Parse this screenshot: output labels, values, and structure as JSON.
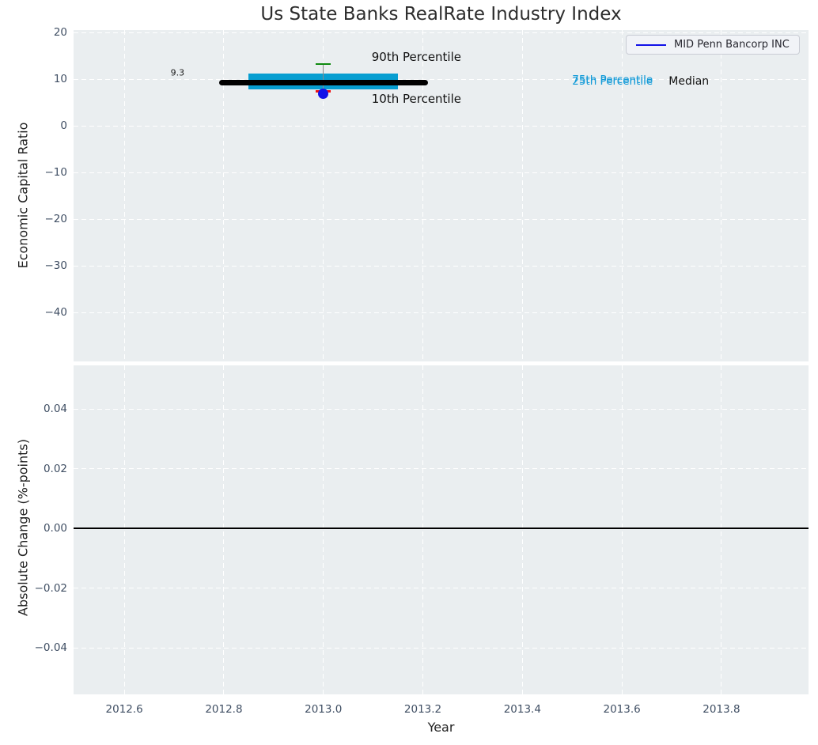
{
  "chart_data": {
    "type": "boxplot",
    "title": "Us State Banks RealRate Industry Index",
    "xlabel": "Year",
    "background": "#eaeef0",
    "grid": {
      "style": "dashed",
      "color": "#ffffff"
    },
    "xlim": [
      2012.498,
      2013.975
    ],
    "x_ticks": [
      {
        "value": 2012.6,
        "label": "2012.6"
      },
      {
        "value": 2012.8,
        "label": "2012.8"
      },
      {
        "value": 2013.0,
        "label": "2013.0"
      },
      {
        "value": 2013.2,
        "label": "2013.2"
      },
      {
        "value": 2013.4,
        "label": "2013.4"
      },
      {
        "value": 2013.6,
        "label": "2013.6"
      },
      {
        "value": 2013.8,
        "label": "2013.8"
      }
    ],
    "legend": {
      "label": "MID Penn Bancorp INC",
      "line_color": "#1111e8",
      "position": "upper right"
    },
    "colors": {
      "box": "#079ed1",
      "median": "#000000",
      "whisker": "#8a8a8a",
      "cap_90th": "#0f8a0f",
      "cap_10th": "#f01010",
      "company_point": "#1111e8",
      "percentile_text": "#149bd8",
      "tick_label": "#3f4e63",
      "annotation_text": "#111111"
    },
    "subplots": [
      {
        "ylabel": "Economic Capital Ratio",
        "ylim": [
          -50.43,
          20.59
        ],
        "y_ticks": [
          {
            "value": 20,
            "label": "20"
          },
          {
            "value": 10,
            "label": "10"
          },
          {
            "value": 0,
            "label": "0"
          },
          {
            "value": -10,
            "label": "−10"
          },
          {
            "value": -20,
            "label": "−20"
          },
          {
            "value": -30,
            "label": "−30"
          },
          {
            "value": -40,
            "label": "−40"
          }
        ],
        "boxplot": {
          "x": 2013.0,
          "p90": 13.3,
          "p75": 11.3,
          "median": 9.3,
          "p25": 7.9,
          "p10": 7.46,
          "box_left": 2012.85,
          "box_right": 2013.15,
          "median_left": 2012.795,
          "median_right": 2013.205,
          "cap_halfwidth": 0.015,
          "company_point": {
            "x": 2013.0,
            "y": 7.0
          }
        },
        "annotations": [
          {
            "text": "9.3",
            "x": 2012.693,
            "y": 11.5,
            "color": "#1a1a1a",
            "size": 11
          },
          {
            "text": "90th Percentile",
            "x": 2013.097,
            "y": 14.9,
            "color": "#111111",
            "size": 15
          },
          {
            "text": "10th Percentile",
            "x": 2013.097,
            "y": 5.85,
            "color": "#111111",
            "size": 15
          },
          {
            "text": "75th Percentile",
            "x": 2013.5,
            "y": 9.99,
            "color": "#149bd8",
            "size": 13.5
          },
          {
            "text": "25th Percentile",
            "x": 2013.5,
            "y": 9.57,
            "color": "#149bd8",
            "size": 13.5
          },
          {
            "text": "Median",
            "x": 2013.694,
            "y": 9.57,
            "color": "#111111",
            "size": 14
          }
        ]
      },
      {
        "ylabel": "Absolute Change (%-points)",
        "ylim": [
          -0.0555,
          0.0547
        ],
        "y_ticks": [
          {
            "value": 0.04,
            "label": "0.04"
          },
          {
            "value": 0.02,
            "label": "0.02"
          },
          {
            "value": 0.0,
            "label": "0.00"
          },
          {
            "value": -0.02,
            "label": "−0.02"
          },
          {
            "value": -0.04,
            "label": "−0.04"
          }
        ],
        "zero_line": {
          "y": 0.0,
          "color": "#000000"
        }
      }
    ]
  }
}
